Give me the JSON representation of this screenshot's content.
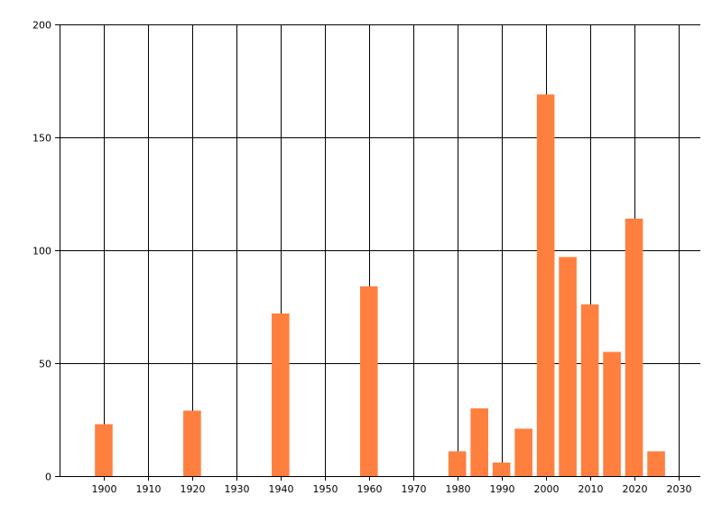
{
  "chart_data": {
    "type": "bar",
    "x": [
      1900,
      1920,
      1940,
      1960,
      1980,
      1985,
      1990,
      1995,
      2000,
      2005,
      2010,
      2015,
      2020,
      2025
    ],
    "values": [
      23,
      29,
      72,
      84,
      11,
      30,
      6,
      21,
      169,
      97,
      76,
      55,
      114,
      11
    ],
    "bar_width_years": 4,
    "xlim": [
      1890,
      2035
    ],
    "ylim": [
      0,
      200
    ],
    "x_ticks": [
      1900,
      1910,
      1920,
      1930,
      1940,
      1950,
      1960,
      1970,
      1980,
      1990,
      2000,
      2010,
      2020,
      2030
    ],
    "y_ticks": [
      0,
      50,
      100,
      150,
      200
    ],
    "grid": true,
    "title": "",
    "xlabel": "",
    "ylabel": "",
    "bar_color": "#ff7f3f",
    "grid_color": "#000000"
  }
}
